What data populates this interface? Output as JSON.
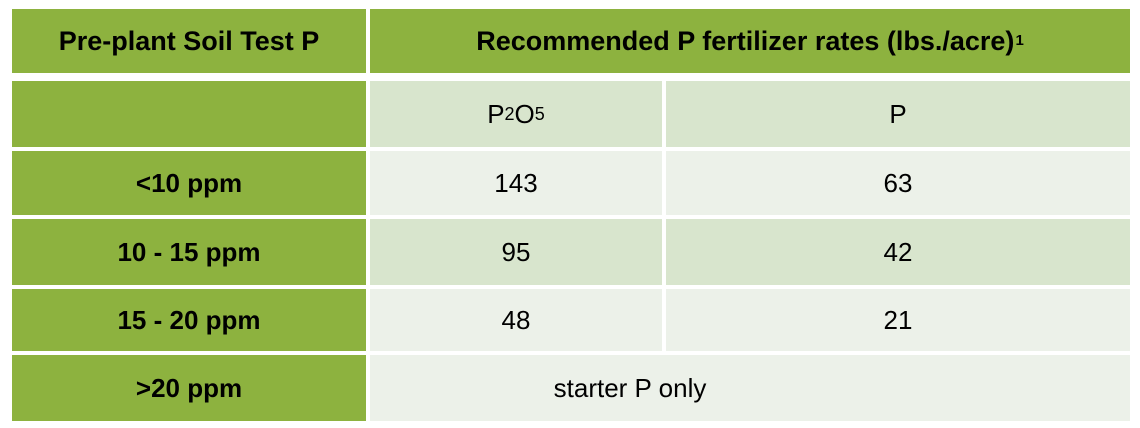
{
  "table": {
    "header": {
      "col1": "Pre-plant Soil Test P",
      "col2": "Recommended P fertilizer rates (lbs./acre)",
      "col2_footnote": "1"
    },
    "subheader": {
      "col1": "",
      "p2o5": {
        "base1": "P",
        "sub1": "2",
        "base2": "O",
        "sub2": "5"
      },
      "p": "P"
    },
    "rows": [
      {
        "soil_test": "<10 ppm",
        "p2o5": "143",
        "p": "63"
      },
      {
        "soil_test": "10 - 15 ppm",
        "p2o5": "95",
        "p": "42"
      },
      {
        "soil_test": "15 - 20 ppm",
        "p2o5": "48",
        "p": "21"
      }
    ],
    "last_row": {
      "soil_test": ">20 ppm",
      "value": "starter P only"
    }
  }
}
